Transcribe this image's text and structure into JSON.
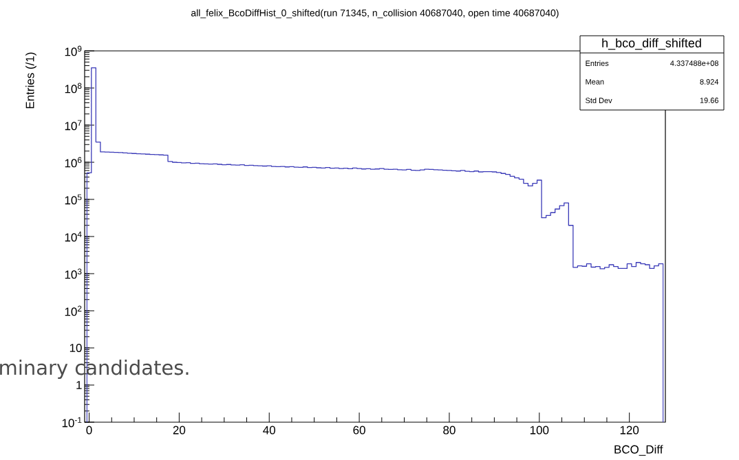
{
  "chart_data": {
    "type": "histogram",
    "title": "all_felix_BcoDiffHist_0_shifted(run 71345, n_collision 40687040, open time 40687040)",
    "xlabel": "BCO_Diff",
    "ylabel": "Entries (/1)",
    "bins": [
      -0.5,
      0.5,
      1.5,
      2.5,
      3.5,
      4.5,
      5.5,
      6.5,
      7.5,
      8.5,
      9.5,
      10.5,
      11.5,
      12.5,
      13.5,
      14.5,
      15.5,
      16.5,
      17.5,
      18.5,
      19.5,
      20.5,
      21.5,
      22.5,
      23.5,
      24.5,
      25.5,
      26.5,
      27.5,
      28.5,
      29.5,
      30.5,
      31.5,
      32.5,
      33.5,
      34.5,
      35.5,
      36.5,
      37.5,
      38.5,
      39.5,
      40.5,
      41.5,
      42.5,
      43.5,
      44.5,
      45.5,
      46.5,
      47.5,
      48.5,
      49.5,
      50.5,
      51.5,
      52.5,
      53.5,
      54.5,
      55.5,
      56.5,
      57.5,
      58.5,
      59.5,
      60.5,
      61.5,
      62.5,
      63.5,
      64.5,
      65.5,
      66.5,
      67.5,
      68.5,
      69.5,
      70.5,
      71.5,
      72.5,
      73.5,
      74.5,
      75.5,
      76.5,
      77.5,
      78.5,
      79.5,
      80.5,
      81.5,
      82.5,
      83.5,
      84.5,
      85.5,
      86.5,
      87.5,
      88.5,
      89.5,
      90.5,
      91.5,
      92.5,
      93.5,
      94.5,
      95.5,
      96.5,
      97.5,
      98.5,
      99.5,
      100.5,
      101.5,
      102.5,
      103.5,
      104.5,
      105.5,
      106.5,
      107.5,
      108.5,
      109.5,
      110.5,
      111.5,
      112.5,
      113.5,
      114.5,
      115.5,
      116.5,
      117.5,
      118.5,
      119.5,
      120.5,
      121.5,
      122.5,
      123.5,
      124.5,
      125.5,
      126.5,
      127.5
    ],
    "values": [
      520000,
      350000000,
      3500000,
      1900000,
      1880000,
      1870000,
      1850000,
      1820000,
      1780000,
      1750000,
      1720000,
      1700000,
      1680000,
      1650000,
      1620000,
      1600000,
      1580000,
      1550000,
      1050000,
      1000000,
      980000,
      960000,
      970000,
      930000,
      940000,
      910000,
      900000,
      890000,
      900000,
      880000,
      860000,
      870000,
      850000,
      840000,
      860000,
      820000,
      830000,
      810000,
      800000,
      790000,
      800000,
      770000,
      760000,
      770000,
      750000,
      760000,
      740000,
      730000,
      750000,
      720000,
      730000,
      710000,
      700000,
      720000,
      690000,
      700000,
      680000,
      690000,
      670000,
      700000,
      680000,
      660000,
      670000,
      650000,
      660000,
      680000,
      650000,
      640000,
      650000,
      630000,
      620000,
      640000,
      610000,
      600000,
      620000,
      650000,
      640000,
      630000,
      620000,
      610000,
      600000,
      590000,
      580000,
      600000,
      570000,
      560000,
      580000,
      550000,
      560000,
      560000,
      550000,
      530000,
      500000,
      470000,
      420000,
      380000,
      350000,
      270000,
      230000,
      270000,
      330000,
      32000,
      37000,
      44000,
      55000,
      68000,
      80000,
      20000,
      1480,
      1620,
      1580,
      1840,
      1500,
      1550,
      1350,
      1480,
      1740,
      1550,
      1380,
      1380,
      1840,
      1550,
      2000,
      1840,
      1740,
      1380,
      1620,
      1840
    ],
    "color": "#3a3ab8",
    "xlim": [
      -1,
      128
    ],
    "ylim": [
      0.1,
      1000000000
    ],
    "log": true,
    "grid": false,
    "xticks": [
      0,
      20,
      40,
      60,
      80,
      100,
      120
    ],
    "yticks": [
      {
        "value": 0.1,
        "label": "10$^{-1}$"
      },
      {
        "value": 1,
        "label": "1"
      },
      {
        "value": 10,
        "label": "10"
      },
      {
        "value": 100,
        "label": "10$^{2}$"
      },
      {
        "value": 1000,
        "label": "10$^{3}$"
      },
      {
        "value": 10000,
        "label": "10$^{4}$"
      },
      {
        "value": 100000,
        "label": "10$^{5}$"
      },
      {
        "value": 1000000,
        "label": "10$^{6}$"
      },
      {
        "value": 10000000,
        "label": "10$^{7}$"
      },
      {
        "value": 100000000,
        "label": "10$^{8}$"
      },
      {
        "value": 1000000000,
        "label": "10$^{9}$"
      }
    ],
    "annotations": [
      "h_bco_diff_shifted",
      "Entries",
      "4.337488e+08",
      "Mean",
      "8.924",
      "Std Dev",
      "19.66",
      "minary candidates."
    ]
  }
}
